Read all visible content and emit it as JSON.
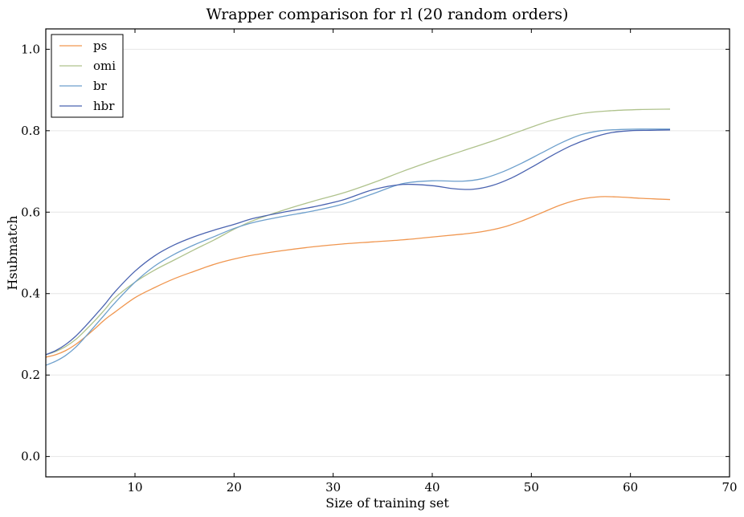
{
  "chart_data": {
    "type": "line",
    "title": "Wrapper comparison for rl (20 random orders)",
    "xlabel": "Size of training set",
    "ylabel": "Hsubmatch",
    "xlim": [
      1,
      70
    ],
    "ylim": [
      -0.05,
      1.05
    ],
    "xticks": [
      "10",
      "20",
      "30",
      "40",
      "50",
      "60",
      "70"
    ],
    "xtick_values": [
      10,
      20,
      30,
      40,
      50,
      60,
      70
    ],
    "yticks": [
      "0.0",
      "0.2",
      "0.4",
      "0.6",
      "0.8",
      "1.0"
    ],
    "ytick_values": [
      0.0,
      0.2,
      0.4,
      0.6,
      0.8,
      1.0
    ],
    "grid": "horizontal",
    "legend_position": "top-left",
    "series": [
      {
        "name": "ps",
        "color": "#f0964f",
        "x": [
          1,
          2,
          3,
          4,
          5,
          6,
          7,
          8,
          10,
          12,
          14,
          16,
          18,
          20,
          22,
          25,
          28,
          31,
          34,
          37,
          40,
          43,
          45,
          47,
          49,
          51,
          53,
          55,
          57,
          59,
          61,
          63,
          64
        ],
        "y": [
          0.244,
          0.25,
          0.26,
          0.275,
          0.294,
          0.315,
          0.337,
          0.355,
          0.39,
          0.415,
          0.437,
          0.455,
          0.472,
          0.485,
          0.495,
          0.506,
          0.515,
          0.522,
          0.527,
          0.532,
          0.539,
          0.546,
          0.552,
          0.562,
          0.578,
          0.598,
          0.618,
          0.632,
          0.638,
          0.637,
          0.634,
          0.632,
          0.631
        ]
      },
      {
        "name": "omi",
        "color": "#afc28c",
        "x": [
          1,
          2,
          3,
          4,
          5,
          6,
          7,
          8,
          10,
          12,
          14,
          16,
          18,
          20,
          22,
          25,
          28,
          31,
          34,
          37,
          40,
          43,
          46,
          49,
          52,
          55,
          58,
          61,
          64
        ],
        "y": [
          0.25,
          0.258,
          0.27,
          0.287,
          0.31,
          0.335,
          0.362,
          0.39,
          0.428,
          0.458,
          0.483,
          0.508,
          0.532,
          0.558,
          0.58,
          0.605,
          0.627,
          0.647,
          0.672,
          0.7,
          0.726,
          0.75,
          0.774,
          0.8,
          0.825,
          0.842,
          0.849,
          0.852,
          0.853
        ]
      },
      {
        "name": "br",
        "color": "#6d9fcc",
        "x": [
          1,
          2,
          3,
          4,
          5,
          6,
          7,
          8,
          10,
          12,
          14,
          16,
          18,
          20,
          22,
          25,
          28,
          31,
          34,
          37,
          40,
          43,
          45,
          47,
          49,
          51,
          53,
          55,
          57,
          59,
          61,
          63,
          64
        ],
        "y": [
          0.224,
          0.234,
          0.248,
          0.268,
          0.294,
          0.322,
          0.35,
          0.378,
          0.428,
          0.468,
          0.497,
          0.52,
          0.54,
          0.56,
          0.575,
          0.59,
          0.603,
          0.62,
          0.645,
          0.67,
          0.677,
          0.676,
          0.682,
          0.698,
          0.72,
          0.745,
          0.77,
          0.79,
          0.8,
          0.803,
          0.804,
          0.804,
          0.804
        ]
      },
      {
        "name": "hbr",
        "color": "#4a63b0",
        "x": [
          1,
          2,
          3,
          4,
          5,
          6,
          7,
          8,
          10,
          12,
          14,
          16,
          18,
          20,
          22,
          25,
          28,
          31,
          34,
          37,
          40,
          42,
          44,
          46,
          48,
          50,
          52,
          54,
          56,
          58,
          60,
          62,
          64
        ],
        "y": [
          0.25,
          0.26,
          0.275,
          0.295,
          0.32,
          0.347,
          0.375,
          0.405,
          0.455,
          0.493,
          0.52,
          0.54,
          0.556,
          0.57,
          0.585,
          0.6,
          0.613,
          0.63,
          0.655,
          0.668,
          0.665,
          0.658,
          0.656,
          0.665,
          0.684,
          0.71,
          0.738,
          0.763,
          0.782,
          0.795,
          0.8,
          0.801,
          0.802
        ]
      }
    ]
  }
}
